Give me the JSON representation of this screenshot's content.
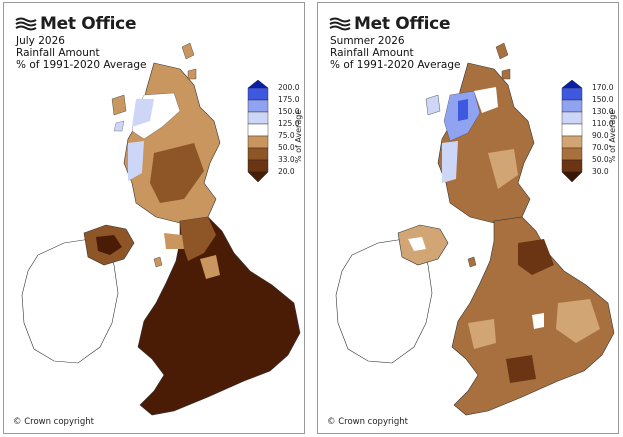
{
  "panels": [
    {
      "logo_text": "Met Office",
      "title_line1": "July 2026",
      "title_line2": "Rainfall Amount",
      "title_line3": "% of 1991-2020 Average",
      "legend_axis": "% of Average",
      "legend_ticks": [
        "200.0",
        "175.0",
        "150.0",
        "125.0",
        "75.0",
        "50.0",
        "33.0",
        "20.0"
      ],
      "legend_colors": [
        "#0a1fa8",
        "#3f58e0",
        "#8fa3f0",
        "#cdd6f7",
        "#ffffff",
        "#c8965e",
        "#8e5526",
        "#4a1c06"
      ],
      "copyright": "© Crown copyright"
    },
    {
      "logo_text": "Met Office",
      "title_line1": "Summer 2026",
      "title_line2": "Rainfall Amount",
      "title_line3": "% of 1991-2020 Average",
      "legend_axis": "% of Average",
      "legend_ticks": [
        "170.0",
        "150.0",
        "130.0",
        "110.0",
        "90.0",
        "70.0",
        "50.0",
        "30.0"
      ],
      "legend_colors": [
        "#0a1fa8",
        "#3f58e0",
        "#8fa3f0",
        "#cdd6f7",
        "#ffffff",
        "#d2a574",
        "#a8703e",
        "#6b3412",
        "#3b1605"
      ],
      "copyright": "© Crown copyright"
    }
  ]
}
